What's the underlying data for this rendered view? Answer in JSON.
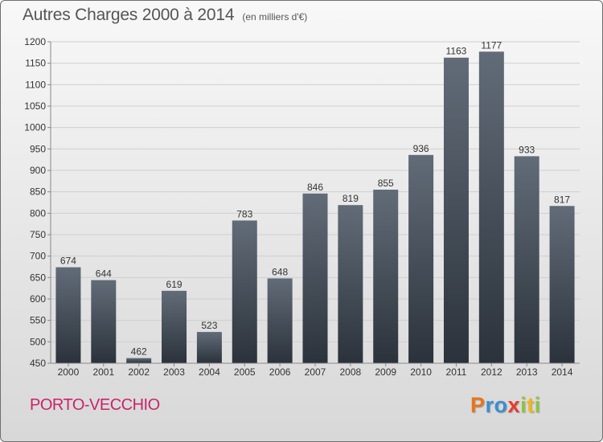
{
  "header": {
    "title": "Autres Charges 2000 à 2014",
    "unit": "(en milliers d'€)"
  },
  "footer": {
    "city": "PORTO-VECCHIO",
    "brand": [
      {
        "ch": "P",
        "color": "#e8741c"
      },
      {
        "ch": "r",
        "color": "#3b8fd0"
      },
      {
        "ch": "o",
        "color": "#3b8fd0"
      },
      {
        "ch": "x",
        "color": "#e83b2c"
      },
      {
        "ch": "i",
        "color": "#8cc63f"
      },
      {
        "ch": "t",
        "color": "#f2b51d"
      },
      {
        "ch": "i",
        "color": "#8cc63f"
      }
    ]
  },
  "colors": {
    "bar_top": "#626c78",
    "bar_bottom": "#2b323b",
    "grid": "#cfcfcf",
    "axis": "#888888",
    "text": "#333333",
    "city": "#c8246a"
  },
  "chart_data": {
    "type": "bar",
    "title": "Autres Charges 2000 à 2014",
    "subtitle": "(en milliers d'€)",
    "categories": [
      "2000",
      "2001",
      "2002",
      "2003",
      "2004",
      "2005",
      "2006",
      "2007",
      "2008",
      "2009",
      "2010",
      "2011",
      "2012",
      "2013",
      "2014"
    ],
    "values": [
      674,
      644,
      462,
      619,
      523,
      783,
      648,
      846,
      819,
      855,
      936,
      1163,
      1177,
      933,
      817
    ],
    "ylim": [
      450,
      1200
    ],
    "yticks": [
      450,
      500,
      550,
      600,
      650,
      700,
      750,
      800,
      850,
      900,
      950,
      1000,
      1050,
      1100,
      1150,
      1200
    ],
    "grid": true,
    "legend": "none"
  }
}
